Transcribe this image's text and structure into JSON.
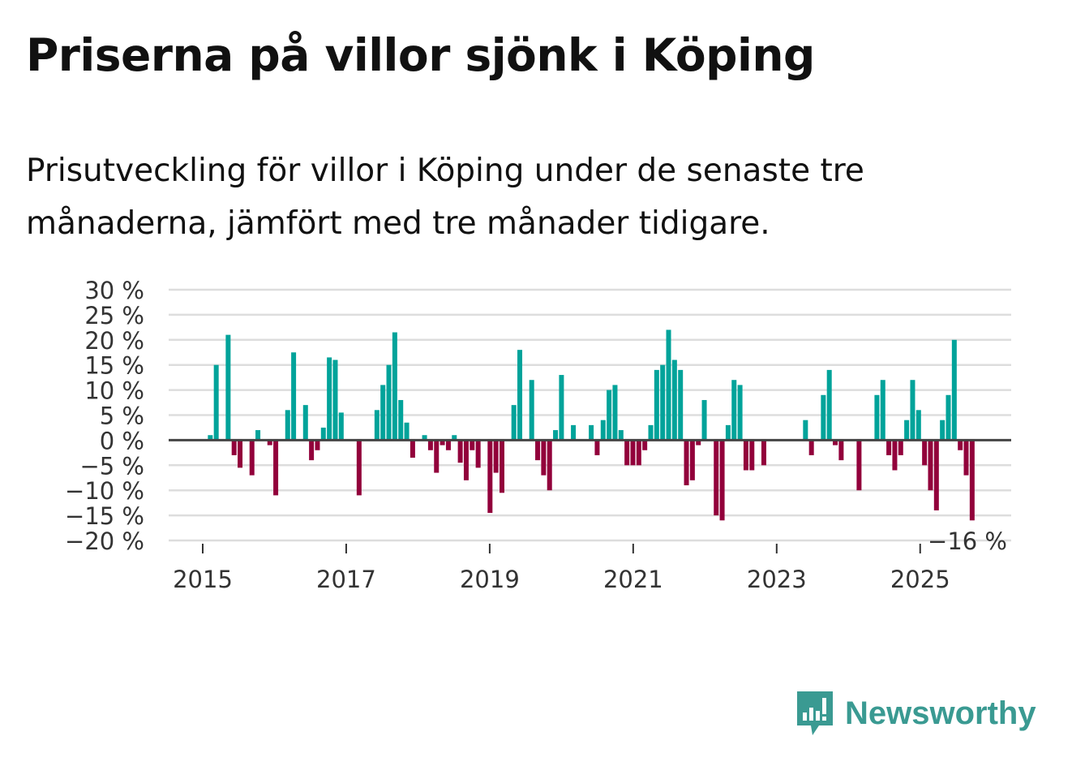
{
  "title": "Priserna på villor sjönk i Köping",
  "subtitle": "Prisutveckling för villor i Köping under de senaste tre månaderna, jämfört med tre månader tidigare.",
  "logo_text": "Newsworthy",
  "chart_data": {
    "type": "bar",
    "title": "Priserna på villor sjönk i Köping",
    "xlabel": "",
    "ylabel": "",
    "ylim": [
      -20,
      30
    ],
    "yticks": [
      "30 %",
      "25 %",
      "20 %",
      "15 %",
      "10 %",
      "5 %",
      "0 %",
      "−5 %",
      "−10 %",
      "−15 %",
      "−20 %"
    ],
    "ytick_values": [
      30,
      25,
      20,
      15,
      10,
      5,
      0,
      -5,
      -10,
      -15,
      -20
    ],
    "xticks": [
      "2015",
      "2017",
      "2019",
      "2021",
      "2023",
      "2025"
    ],
    "grid": true,
    "colors": {
      "positive": "#00a39a",
      "negative": "#92003b",
      "zero_line": "#444444",
      "grid": "#dddddd"
    },
    "annotation": "−16 %",
    "start_month": "2015-01",
    "month_index": [
      1,
      2,
      4,
      5,
      6,
      8,
      9,
      11,
      12,
      14,
      15,
      17,
      18,
      19,
      20,
      21,
      22,
      23,
      26,
      29,
      30,
      31,
      32,
      33,
      34,
      35,
      37,
      38,
      39,
      40,
      41,
      42,
      43,
      44,
      45,
      46,
      48,
      49,
      50,
      52,
      53,
      55,
      56,
      57,
      58,
      59,
      60,
      62,
      65,
      66,
      67,
      68,
      69,
      70,
      71,
      72,
      73,
      74,
      75,
      76,
      77,
      78,
      79,
      80,
      81,
      82,
      83,
      84,
      86,
      87,
      88,
      89,
      90,
      91,
      92,
      94,
      101,
      102,
      104,
      105,
      106,
      107,
      110,
      113,
      114,
      115,
      116,
      117,
      118,
      119,
      120,
      121,
      122,
      123,
      124,
      125,
      126,
      127,
      128,
      129
    ],
    "values": [
      1,
      15,
      21,
      -3,
      -5.5,
      -7,
      2,
      -1,
      -11,
      6,
      17.5,
      7,
      -4,
      -2,
      2.5,
      16.5,
      16,
      5.5,
      -11,
      6,
      11,
      15,
      21.5,
      8,
      3.5,
      -3.5,
      1,
      -2,
      -6.5,
      -1,
      -2,
      1,
      -4.5,
      -8,
      -2,
      -5.5,
      -14.5,
      -6.5,
      -10.5,
      7,
      18,
      12,
      -4,
      -7,
      -10,
      2,
      13,
      3,
      3,
      -3,
      4,
      10,
      11,
      2,
      -5,
      -5,
      -5,
      -2,
      3,
      14,
      15,
      22,
      16,
      14,
      -9,
      -8,
      -1,
      8,
      -15,
      -16,
      3,
      12,
      11,
      -6,
      -6,
      -5,
      4,
      -3,
      9,
      14,
      -1,
      -4,
      -10,
      9,
      12,
      -3,
      -6,
      -3,
      4,
      12,
      6,
      -5,
      -10,
      -14,
      4,
      9,
      20,
      -2,
      -7,
      -16
    ]
  }
}
